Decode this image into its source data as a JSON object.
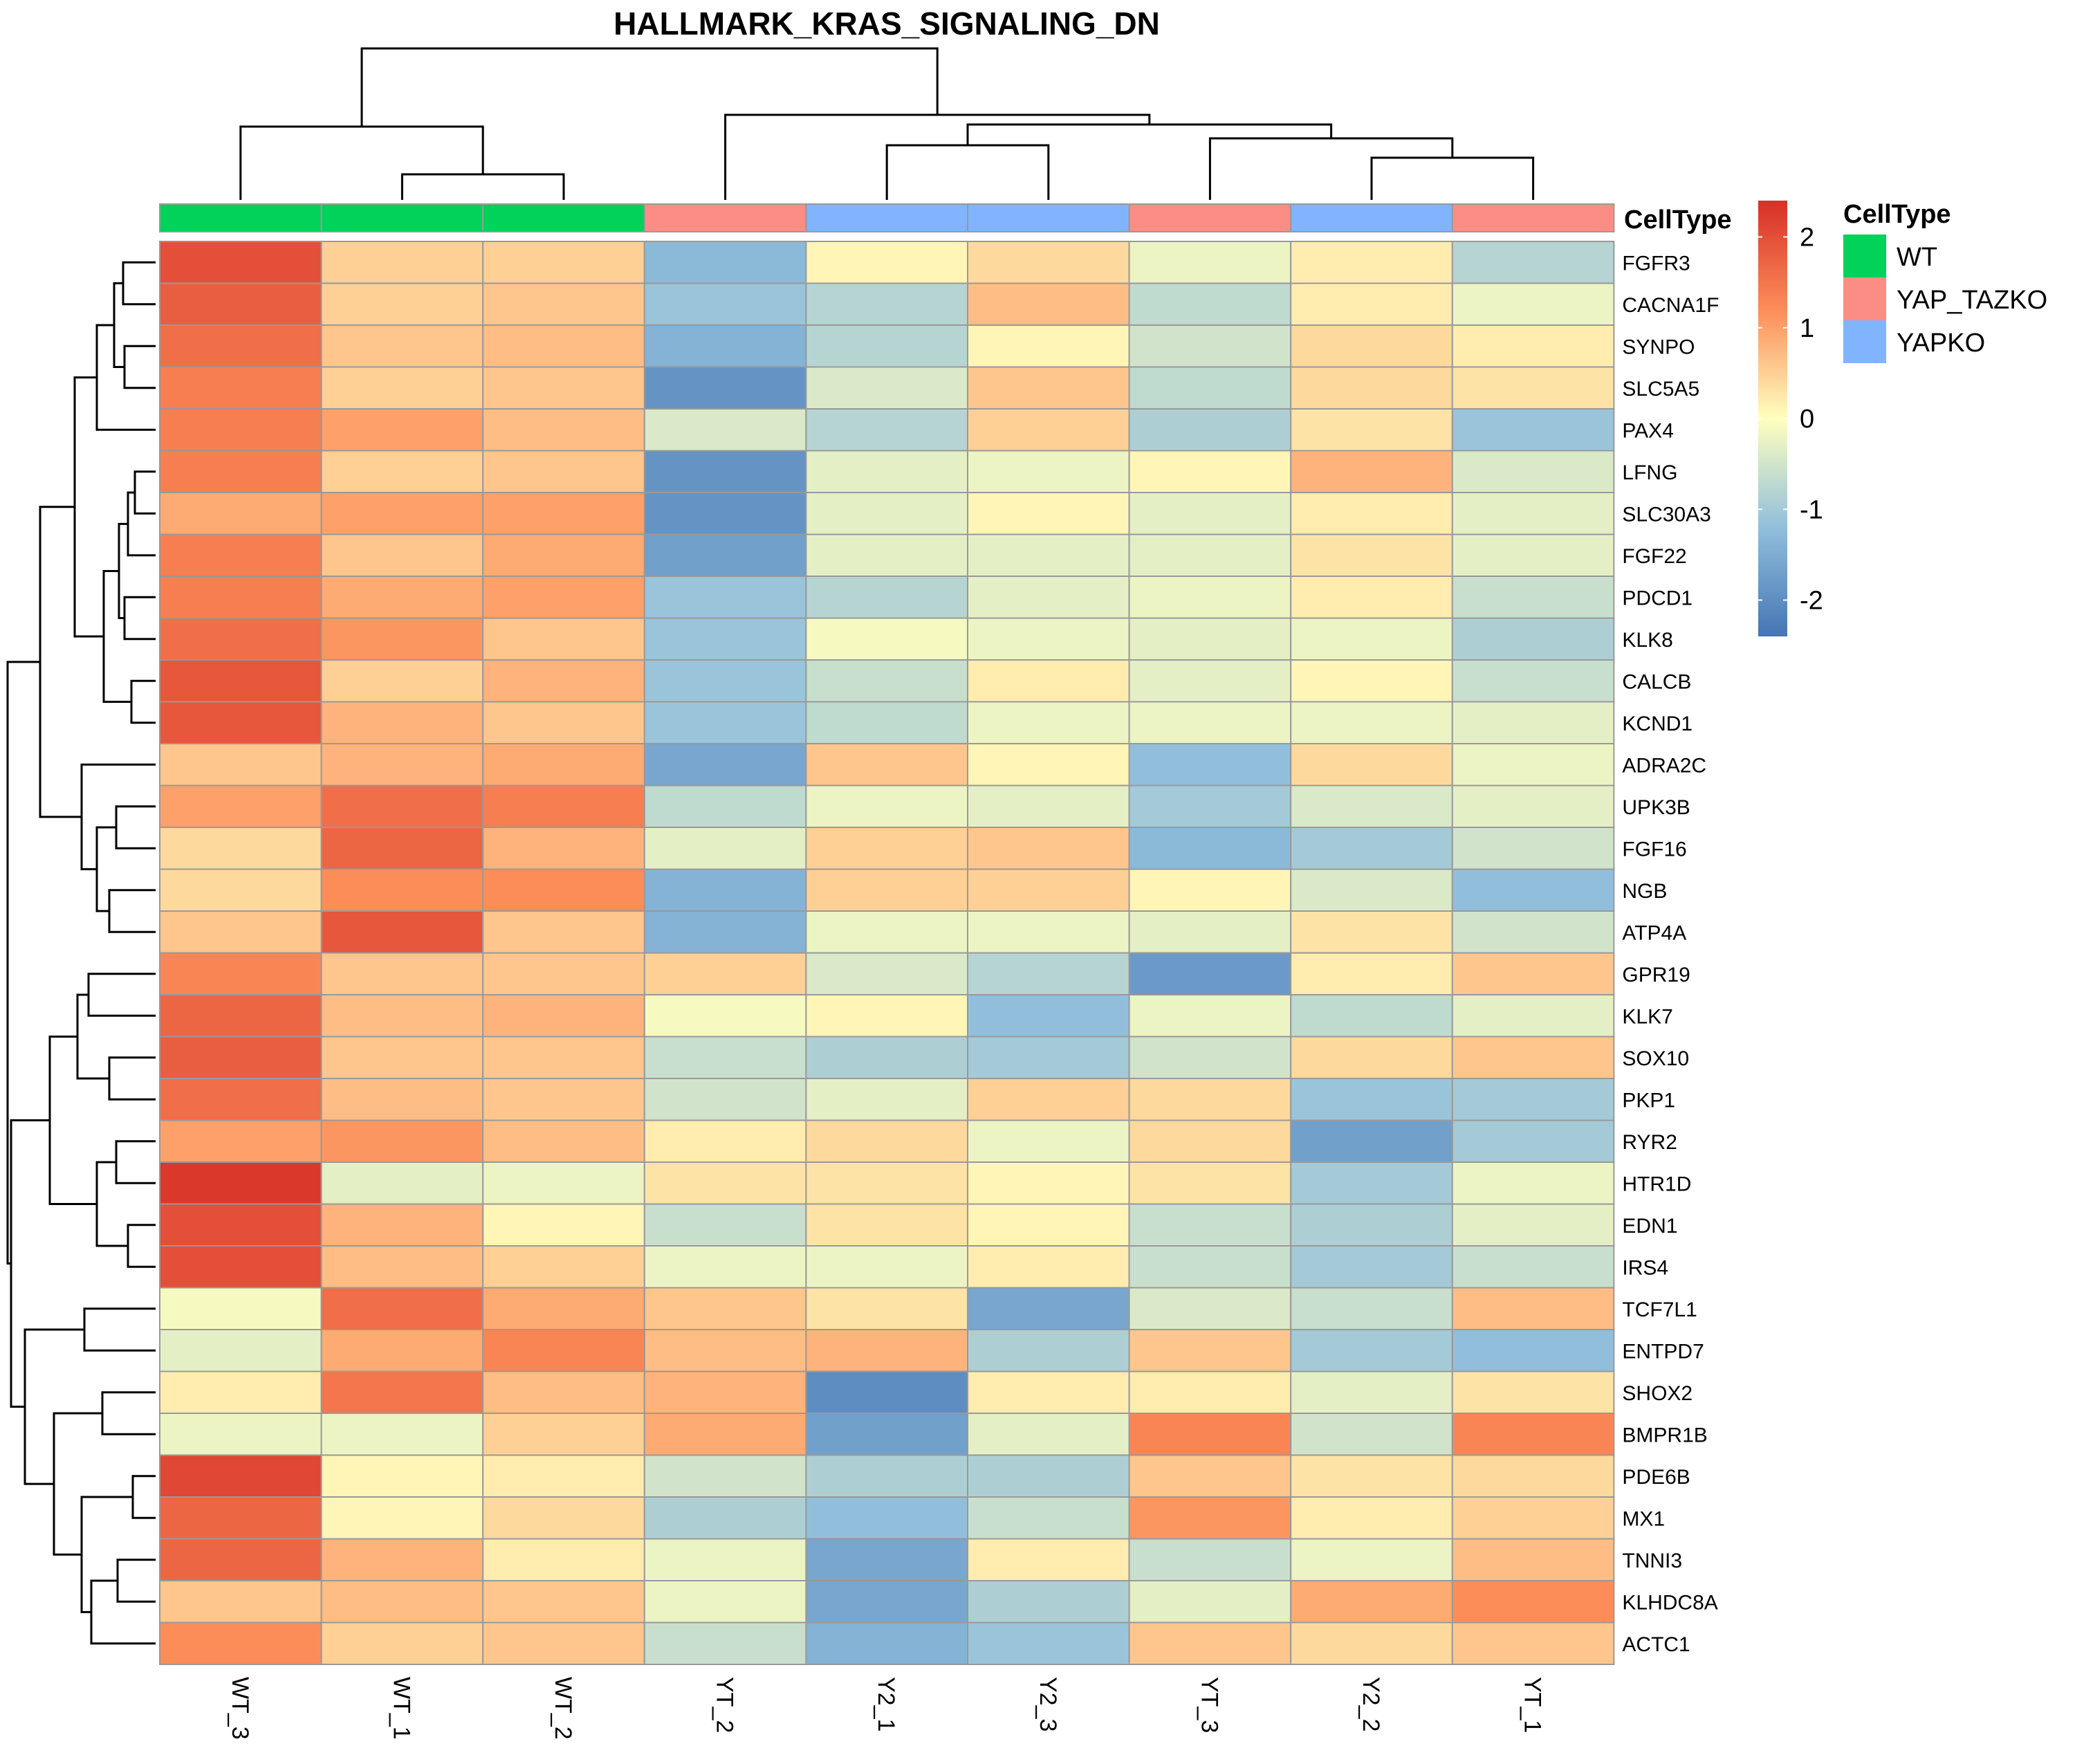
{
  "chart_data": {
    "type": "heatmap",
    "title": "HALLMARK_KRAS_SIGNALING_DN",
    "columns": [
      "WT_3",
      "WT_1",
      "WT_2",
      "YT_2",
      "Y2_1",
      "Y2_3",
      "YT_3",
      "Y2_2",
      "YT_1"
    ],
    "column_celltype": [
      "WT",
      "WT",
      "WT",
      "YAP_TAZKO",
      "YAPKO",
      "YAPKO",
      "YAP_TAZKO",
      "YAPKO",
      "YAP_TAZKO"
    ],
    "rows": [
      "FGFR3",
      "CACNA1F",
      "SYNPO",
      "SLC5A5",
      "PAX4",
      "LFNG",
      "SLC30A3",
      "FGF22",
      "PDCD1",
      "KLK8",
      "CALCB",
      "KCND1",
      "ADRA2C",
      "UPK3B",
      "FGF16",
      "NGB",
      "ATP4A",
      "GPR19",
      "KLK7",
      "SOX10",
      "PKP1",
      "RYR2",
      "HTR1D",
      "EDN1",
      "IRS4",
      "TCF7L1",
      "ENTPD7",
      "SHOX2",
      "BMPR1B",
      "PDE6B",
      "MX1",
      "TNNI3",
      "KLHDC8A",
      "ACTC1"
    ],
    "values": [
      [
        2.0,
        0.5,
        0.5,
        -1.3,
        0.1,
        0.4,
        -0.2,
        0.2,
        -0.8
      ],
      [
        1.8,
        0.5,
        0.6,
        -1.1,
        -0.8,
        0.7,
        -0.7,
        0.2,
        -0.2
      ],
      [
        1.6,
        0.6,
        0.7,
        -1.4,
        -0.8,
        0.1,
        -0.5,
        0.4,
        0.2
      ],
      [
        1.4,
        0.5,
        0.6,
        -1.9,
        -0.4,
        0.6,
        -0.7,
        0.4,
        0.3
      ],
      [
        1.4,
        1.0,
        0.7,
        -0.4,
        -0.8,
        0.5,
        -0.9,
        0.3,
        -1.1
      ],
      [
        1.4,
        0.5,
        0.6,
        -1.9,
        -0.3,
        -0.2,
        0.1,
        0.8,
        -0.4
      ],
      [
        0.9,
        1.0,
        1.0,
        -1.9,
        -0.3,
        0.1,
        -0.3,
        0.2,
        -0.3
      ],
      [
        1.4,
        0.6,
        0.9,
        -1.7,
        -0.3,
        -0.3,
        -0.3,
        0.3,
        -0.3
      ],
      [
        1.4,
        0.9,
        1.0,
        -1.1,
        -0.8,
        -0.3,
        -0.2,
        0.2,
        -0.6
      ],
      [
        1.6,
        1.1,
        0.6,
        -1.1,
        -0.1,
        -0.2,
        -0.3,
        -0.2,
        -0.9
      ],
      [
        1.9,
        0.5,
        0.8,
        -1.1,
        -0.6,
        0.2,
        -0.3,
        0.1,
        -0.6
      ],
      [
        1.9,
        0.8,
        0.6,
        -1.1,
        -0.7,
        -0.2,
        -0.2,
        -0.2,
        -0.3
      ],
      [
        0.6,
        0.8,
        0.9,
        -1.6,
        0.6,
        0.1,
        -1.2,
        0.4,
        -0.2
      ],
      [
        1.0,
        1.6,
        1.4,
        -0.7,
        -0.2,
        -0.3,
        -1.0,
        -0.4,
        -0.3
      ],
      [
        0.4,
        1.7,
        0.8,
        -0.3,
        0.5,
        0.6,
        -1.3,
        -1.0,
        -0.5
      ],
      [
        0.4,
        1.2,
        1.2,
        -1.4,
        0.5,
        0.5,
        0.1,
        -0.4,
        -1.2
      ],
      [
        0.6,
        1.9,
        0.6,
        -1.4,
        -0.2,
        -0.2,
        -0.3,
        0.3,
        -0.5
      ],
      [
        1.3,
        0.6,
        0.6,
        0.5,
        -0.4,
        -0.8,
        -1.8,
        0.2,
        0.6
      ],
      [
        1.7,
        0.7,
        0.8,
        -0.1,
        0.1,
        -1.2,
        -0.2,
        -0.7,
        -0.3
      ],
      [
        1.8,
        0.6,
        0.6,
        -0.6,
        -0.9,
        -1.0,
        -0.5,
        0.4,
        0.6
      ],
      [
        1.6,
        0.7,
        0.6,
        -0.5,
        -0.3,
        0.5,
        0.4,
        -1.1,
        -1.0
      ],
      [
        1.0,
        1.1,
        0.7,
        0.2,
        0.4,
        -0.2,
        0.4,
        -1.7,
        -1.0
      ],
      [
        2.3,
        -0.3,
        -0.2,
        0.3,
        0.3,
        0.1,
        0.3,
        -1.0,
        -0.2
      ],
      [
        2.0,
        0.8,
        0.1,
        -0.6,
        0.3,
        0.1,
        -0.6,
        -0.9,
        -0.3
      ],
      [
        2.0,
        0.7,
        0.5,
        -0.2,
        -0.2,
        0.2,
        -0.6,
        -1.0,
        -0.6
      ],
      [
        -0.1,
        1.6,
        0.9,
        0.6,
        0.3,
        -1.6,
        -0.4,
        -0.6,
        0.7
      ],
      [
        -0.3,
        0.9,
        1.3,
        0.7,
        0.8,
        -0.9,
        0.6,
        -1.0,
        -1.2
      ],
      [
        0.2,
        1.5,
        0.7,
        0.8,
        -2.0,
        0.2,
        0.2,
        -0.3,
        0.3
      ],
      [
        -0.2,
        -0.2,
        0.5,
        0.9,
        -1.7,
        -0.3,
        1.3,
        -0.5,
        1.3
      ],
      [
        2.1,
        0.1,
        0.2,
        -0.5,
        -0.9,
        -0.9,
        0.6,
        0.3,
        0.4
      ],
      [
        1.7,
        0.1,
        0.4,
        -0.9,
        -1.2,
        -0.6,
        1.1,
        0.2,
        0.5
      ],
      [
        1.7,
        0.8,
        0.2,
        -0.2,
        -1.6,
        0.2,
        -0.6,
        -0.2,
        0.7
      ],
      [
        0.6,
        0.7,
        0.6,
        -0.2,
        -1.6,
        -0.9,
        -0.3,
        0.9,
        1.2
      ],
      [
        1.2,
        0.5,
        0.6,
        -0.6,
        -1.4,
        -1.1,
        0.6,
        0.4,
        0.6
      ]
    ],
    "color_scale": {
      "ticks": [
        "2",
        "1",
        "0",
        "-1",
        "-2"
      ],
      "tick_values": [
        2,
        1,
        0,
        -1,
        -2
      ],
      "min": -2.4,
      "max": 2.4,
      "colors": [
        "#4575B4",
        "#91BFDB",
        "#FFFFBF",
        "#FC8D59",
        "#D73027"
      ]
    },
    "annotation": {
      "name": "CellType",
      "levels": [
        {
          "label": "WT",
          "color": "#00D25A"
        },
        {
          "label": "YAP_TAZKO",
          "color": "#FC8D85"
        },
        {
          "label": "YAPKO",
          "color": "#80B4FF"
        }
      ]
    },
    "grid_color": "#999999",
    "legend_placement": "right",
    "column_dendrogram": "top",
    "row_dendrogram": "left"
  }
}
